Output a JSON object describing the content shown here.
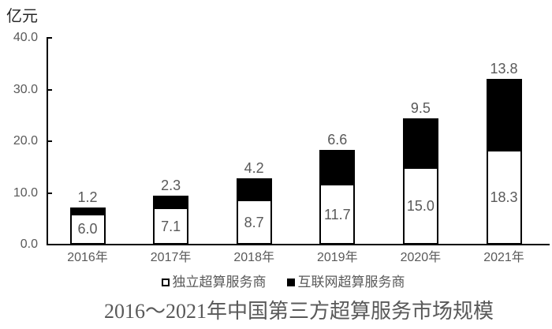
{
  "figure": {
    "unit_label": "亿元",
    "title": "2016～2021年中国第三方超算服务市场规模"
  },
  "legend": {
    "items": [
      {
        "label": "独立超算服务商",
        "swatch_color": "#ffffff"
      },
      {
        "label": "互联网超算服务商",
        "swatch_color": "#000000"
      }
    ]
  },
  "chart_data": {
    "type": "bar",
    "stacked": true,
    "title": "2016～2021年中国第三方超算服务市场规模",
    "unit": "亿元",
    "categories": [
      "2016年",
      "2017年",
      "2018年",
      "2019年",
      "2020年",
      "2021年"
    ],
    "series": [
      {
        "name": "独立超算服务商",
        "color": "#ffffff",
        "values": [
          6.0,
          7.1,
          8.7,
          11.7,
          15.0,
          18.3
        ]
      },
      {
        "name": "互联网超算服务商",
        "color": "#000000",
        "values": [
          1.2,
          2.3,
          4.2,
          6.6,
          9.5,
          13.8
        ]
      }
    ],
    "ylabel": "亿元",
    "ylim": [
      0,
      40
    ],
    "ytick_labels": [
      "0.0",
      "10.0",
      "20.0",
      "30.0",
      "40.0"
    ],
    "ytick_values": [
      0,
      10,
      20,
      30,
      40
    ],
    "grid": false,
    "legend_position": "bottom",
    "data_labels": "shown",
    "colors": {
      "axis": "#000000",
      "text_gray": "#595959",
      "bar_independent": "#ffffff",
      "bar_internet": "#000000"
    }
  }
}
